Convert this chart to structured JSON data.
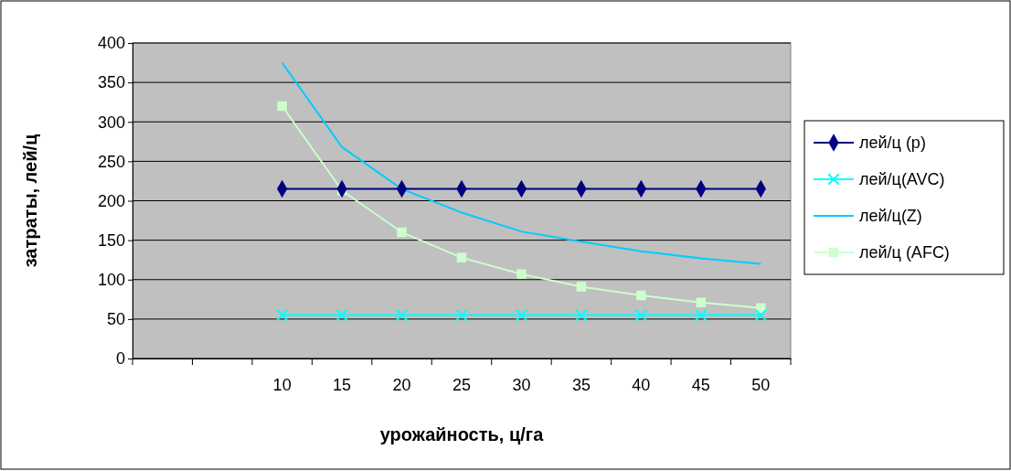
{
  "chart_data": {
    "type": "line",
    "xlabel": "урожайность, ц/га",
    "ylabel": "затраты, лей/ц",
    "categories": [
      null,
      null,
      "10",
      "15",
      "20",
      "25",
      "30",
      "35",
      "40",
      "45",
      "50"
    ],
    "series": [
      {
        "name": "лей/ц (р)",
        "color": "#000080",
        "marker": "diamond",
        "values": [
          null,
          null,
          215,
          215,
          215,
          215,
          215,
          215,
          215,
          215,
          215
        ]
      },
      {
        "name": "лей/ц(AVC)",
        "color": "#00ffff",
        "marker": "cross",
        "values": [
          null,
          null,
          55,
          55,
          55,
          55,
          55,
          55,
          55,
          55,
          55
        ]
      },
      {
        "name": "лей/ц(Z)",
        "color": "#00ccff",
        "marker": "none",
        "values": [
          null,
          null,
          375,
          268,
          215,
          185,
          161,
          148,
          136,
          127,
          120
        ]
      },
      {
        "name": "лей/ц (AFC)",
        "color": "#ccffcc",
        "marker": "square",
        "values": [
          null,
          null,
          320,
          213,
          160,
          128,
          107,
          91,
          80,
          71,
          64
        ]
      }
    ],
    "ylim": [
      0,
      400
    ],
    "yticks": [
      0,
      50,
      100,
      150,
      200,
      250,
      300,
      350,
      400
    ],
    "grid": "y",
    "legend": "right"
  }
}
